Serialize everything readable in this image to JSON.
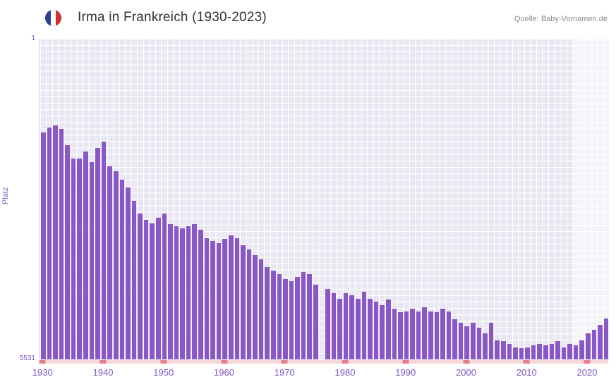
{
  "header": {
    "title": "Irma in Frankreich (1930-2023)",
    "source": "Quelle: Baby-Vornamen.de",
    "flag_icon": "france-flag"
  },
  "chart_data": {
    "type": "bar",
    "title": "Irma in Frankreich (1930-2023)",
    "xlabel": "",
    "ylabel": "Platz",
    "y_axis": {
      "min": 1,
      "max": 5531,
      "inverted": true,
      "top_label": "1",
      "bottom_label": "5531"
    },
    "x_ticks": [
      1930,
      1940,
      1950,
      1960,
      1970,
      1980,
      1990,
      2000,
      2010,
      2020
    ],
    "years": [
      1930,
      1931,
      1932,
      1933,
      1934,
      1935,
      1936,
      1937,
      1938,
      1939,
      1940,
      1941,
      1942,
      1943,
      1944,
      1945,
      1946,
      1947,
      1948,
      1949,
      1950,
      1951,
      1952,
      1953,
      1954,
      1955,
      1956,
      1957,
      1958,
      1959,
      1960,
      1961,
      1962,
      1963,
      1964,
      1965,
      1966,
      1967,
      1968,
      1969,
      1970,
      1971,
      1972,
      1973,
      1974,
      1975,
      1976,
      1977,
      1978,
      1979,
      1980,
      1981,
      1982,
      1983,
      1984,
      1985,
      1986,
      1987,
      1988,
      1989,
      1990,
      1991,
      1992,
      1993,
      1994,
      1995,
      1996,
      1997,
      1998,
      1999,
      2000,
      2001,
      2002,
      2003,
      2004,
      2005,
      2006,
      2007,
      2008,
      2009,
      2010,
      2011,
      2012,
      2013,
      2014,
      2015,
      2016,
      2017,
      2018,
      2019,
      2020,
      2021,
      2022,
      2023
    ],
    "ranks": [
      1620,
      1530,
      1500,
      1560,
      1830,
      2070,
      2070,
      1950,
      2130,
      1890,
      1780,
      2200,
      2290,
      2430,
      2560,
      2800,
      3010,
      3130,
      3190,
      3090,
      3020,
      3200,
      3230,
      3270,
      3230,
      3200,
      3290,
      3440,
      3490,
      3520,
      3450,
      3390,
      3440,
      3560,
      3640,
      3730,
      3800,
      3940,
      4000,
      4060,
      4150,
      4180,
      4110,
      4020,
      4060,
      4240,
      null,
      4310,
      4390,
      4480,
      4390,
      4430,
      4480,
      4360,
      4480,
      4540,
      4600,
      4500,
      4660,
      4720,
      4700,
      4660,
      4700,
      4630,
      4700,
      4720,
      4660,
      4700,
      4840,
      4900,
      4960,
      4900,
      4980,
      5080,
      4900,
      5200,
      5220,
      5260,
      5320,
      5340,
      5320,
      5290,
      5260,
      5290,
      5260,
      5220,
      5320,
      5260,
      5290,
      5200,
      5080,
      5020,
      4940,
      4830
    ],
    "missing_years": [
      1976
    ],
    "highlight_region": {
      "from_year": 2018,
      "to_year": 2023
    },
    "legend": "none",
    "grid": "on",
    "colors": {
      "bar": "#8a57c6",
      "plot_background": "#e9e7f1",
      "grid": "#ffffff",
      "axis_text": "#7e57c2",
      "baseline": "#f6d7dc",
      "tick_marks": "#e2808c",
      "title_text": "#333333",
      "source_text": "#8a8a8a"
    }
  }
}
